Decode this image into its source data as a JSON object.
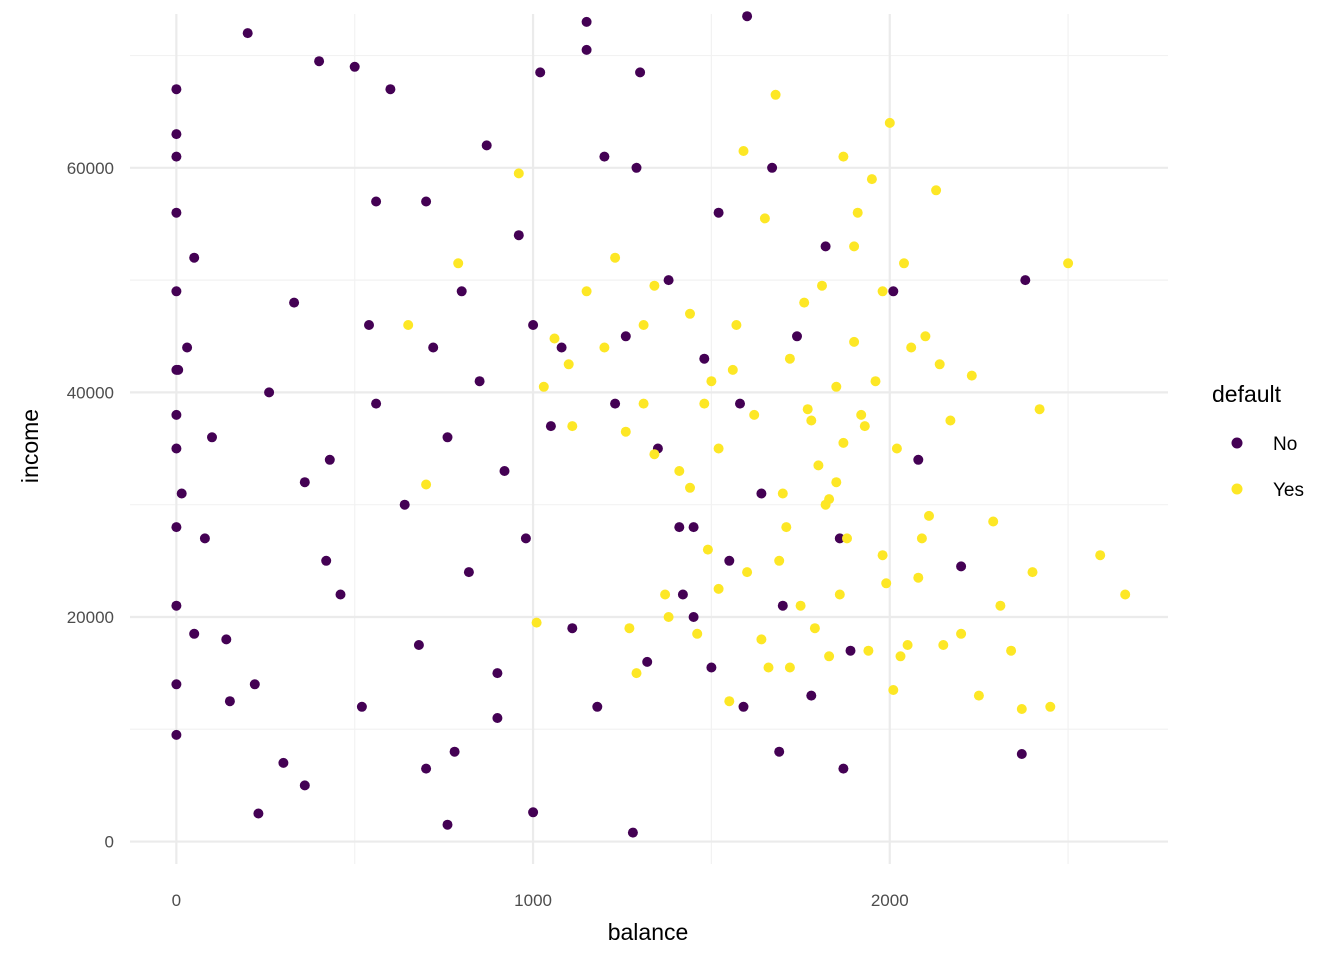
{
  "chart_data": {
    "type": "scatter",
    "title": "",
    "xlabel": "balance",
    "ylabel": "income",
    "xlim": [
      -130,
      2780
    ],
    "ylim": [
      -2000,
      73700
    ],
    "x_ticks": [
      0,
      1000,
      2000
    ],
    "y_ticks": [
      0,
      20000,
      40000,
      60000
    ],
    "x_tick_labels": [
      "0",
      "1000",
      "2000"
    ],
    "y_tick_labels": [
      "0",
      "20000",
      "40000",
      "60000"
    ],
    "grid": true,
    "legend": {
      "title": "default",
      "placement": "right",
      "entries": [
        "No",
        "Yes"
      ]
    },
    "series": [
      {
        "name": "No",
        "color": "#440154",
        "x": [
          0,
          0,
          0,
          0,
          0,
          0,
          0,
          0,
          0,
          0,
          0,
          0,
          5,
          15,
          30,
          50,
          80,
          100,
          140,
          200,
          230,
          260,
          300,
          330,
          360,
          400,
          430,
          460,
          500,
          520,
          540,
          560,
          600,
          640,
          680,
          700,
          720,
          760,
          780,
          800,
          820,
          850,
          870,
          900,
          920,
          960,
          980,
          1000,
          1020,
          1050,
          1080,
          1110,
          1150,
          1180,
          1200,
          1230,
          1260,
          1290,
          1320,
          1350,
          1380,
          1420,
          1450,
          1480,
          1500,
          1520,
          1550,
          1580,
          1600,
          1640,
          1670,
          1700,
          1740,
          1780,
          1820,
          1860,
          1890,
          2010,
          2080,
          2200,
          2380,
          2370,
          700,
          760,
          900,
          1000,
          1150,
          1280,
          1300,
          1410,
          1450,
          1590,
          1690,
          1870,
          560,
          420,
          360,
          220,
          150,
          50
        ],
        "y": [
          9500,
          14000,
          21000,
          28000,
          35000,
          42000,
          49000,
          56000,
          61000,
          63000,
          67000,
          38000,
          42000,
          31000,
          44000,
          52000,
          27000,
          36000,
          18000,
          72000,
          2500,
          40000,
          7000,
          48000,
          5000,
          69500,
          34000,
          22000,
          69000,
          12000,
          46000,
          39000,
          67000,
          30000,
          17500,
          57000,
          44000,
          36000,
          8000,
          49000,
          24000,
          41000,
          62000,
          15000,
          33000,
          54000,
          27000,
          2600,
          68500,
          37000,
          44000,
          19000,
          70500,
          12000,
          61000,
          39000,
          45000,
          60000,
          16000,
          35000,
          50000,
          22000,
          28000,
          43000,
          15500,
          56000,
          25000,
          39000,
          73500,
          31000,
          60000,
          21000,
          45000,
          13000,
          53000,
          27000,
          17000,
          49000,
          34000,
          24500,
          50000,
          7800,
          6500,
          1500,
          11000,
          46000,
          73000,
          800,
          68500,
          28000,
          20000,
          12000,
          8000,
          6500,
          57000,
          25000,
          32000,
          14000,
          12500,
          18500
        ]
      },
      {
        "name": "Yes",
        "color": "#fde725",
        "x": [
          650,
          700,
          790,
          960,
          1010,
          1030,
          1060,
          1100,
          1110,
          1150,
          1200,
          1230,
          1260,
          1290,
          1310,
          1340,
          1370,
          1410,
          1440,
          1460,
          1490,
          1500,
          1520,
          1550,
          1570,
          1590,
          1600,
          1620,
          1650,
          1660,
          1680,
          1700,
          1720,
          1750,
          1770,
          1790,
          1810,
          1830,
          1850,
          1870,
          1880,
          1900,
          1920,
          1940,
          1960,
          1980,
          2000,
          2010,
          2020,
          2040,
          2060,
          2080,
          2100,
          2110,
          2130,
          2150,
          2170,
          2200,
          2230,
          2250,
          2290,
          2310,
          2340,
          2370,
          2400,
          2420,
          2450,
          2500,
          2590,
          2660,
          1850,
          1900,
          1930,
          1800,
          1760,
          1710,
          1640,
          1560,
          1520,
          1480,
          1440,
          1380,
          1340,
          1310,
          1270,
          1820,
          1870,
          1990,
          2030,
          2090,
          2140,
          1950,
          1780,
          1720,
          1690,
          1860,
          1980,
          2050,
          1910,
          1830
        ],
        "y": [
          46000,
          31800,
          51500,
          59500,
          19500,
          40500,
          44800,
          42500,
          37000,
          49000,
          44000,
          52000,
          36500,
          15000,
          39000,
          49500,
          22000,
          33000,
          47000,
          18500,
          26000,
          41000,
          35000,
          12500,
          46000,
          61500,
          24000,
          38000,
          55500,
          15500,
          66500,
          31000,
          43000,
          21000,
          38500,
          19000,
          49500,
          16500,
          32000,
          61000,
          27000,
          53000,
          38000,
          17000,
          41000,
          25500,
          64000,
          13500,
          35000,
          51500,
          44000,
          23500,
          45000,
          29000,
          58000,
          17500,
          37500,
          18500,
          41500,
          13000,
          28500,
          21000,
          17000,
          11800,
          24000,
          38500,
          12000,
          51500,
          25500,
          22000,
          40500,
          44500,
          37000,
          33500,
          48000,
          28000,
          18000,
          42000,
          22500,
          39000,
          31500,
          20000,
          34500,
          46000,
          19000,
          30000,
          35500,
          23000,
          16500,
          27000,
          42500,
          59000,
          37500,
          15500,
          25000,
          22000,
          49000,
          17500,
          56000,
          30500
        ]
      }
    ]
  }
}
